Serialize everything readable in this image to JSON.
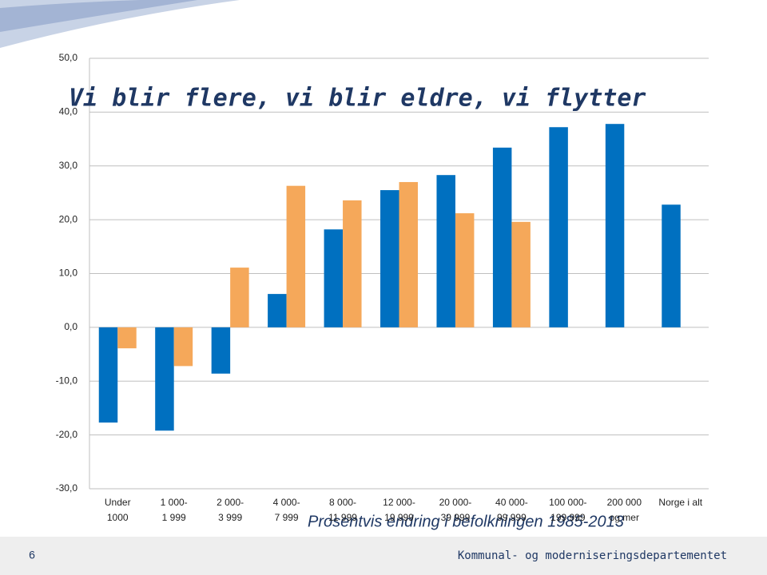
{
  "chart_data": {
    "type": "bar",
    "title": "Vi blir flere, vi blir eldre, vi flytter",
    "subtitle": "Prosentvis endring i befolkningen 1985-2013",
    "categories": [
      "Under\n1000",
      "1 000-\n1 999",
      "2 000-\n3 999",
      "4 000-\n7 999",
      "8 000-\n11 999",
      "12 000-\n19 999",
      "20 000-\n39 999",
      "40 000-\n99 999",
      "100 000-\n199 999",
      "200 000\nog mer",
      "Norge i alt"
    ],
    "series": [
      {
        "color": "#0070c0",
        "values": [
          -17.7,
          -19.2,
          -8.6,
          6.2,
          18.2,
          25.5,
          28.3,
          33.4,
          37.2,
          37.8,
          22.8
        ]
      },
      {
        "color": "#f5a85a",
        "values": [
          -3.9,
          -7.2,
          11.1,
          26.3,
          23.6,
          27.0,
          21.2,
          19.6,
          null,
          null,
          null
        ]
      }
    ],
    "ylim": [
      -30,
      50
    ],
    "yticks": [
      {
        "value": -30,
        "label": "-30,0"
      },
      {
        "value": -20,
        "label": "-20,0"
      },
      {
        "value": -10,
        "label": "-10,0"
      },
      {
        "value": 0,
        "label": "0,0"
      },
      {
        "value": 10,
        "label": "10,0"
      },
      {
        "value": 20,
        "label": "20,0"
      },
      {
        "value": 30,
        "label": "30,0"
      },
      {
        "value": 40,
        "label": "40,0"
      },
      {
        "value": 50,
        "label": "50,0"
      }
    ],
    "grid": true
  },
  "footer": {
    "page": "6",
    "organization": "Kommunal- og moderniseringsdepartementet"
  }
}
